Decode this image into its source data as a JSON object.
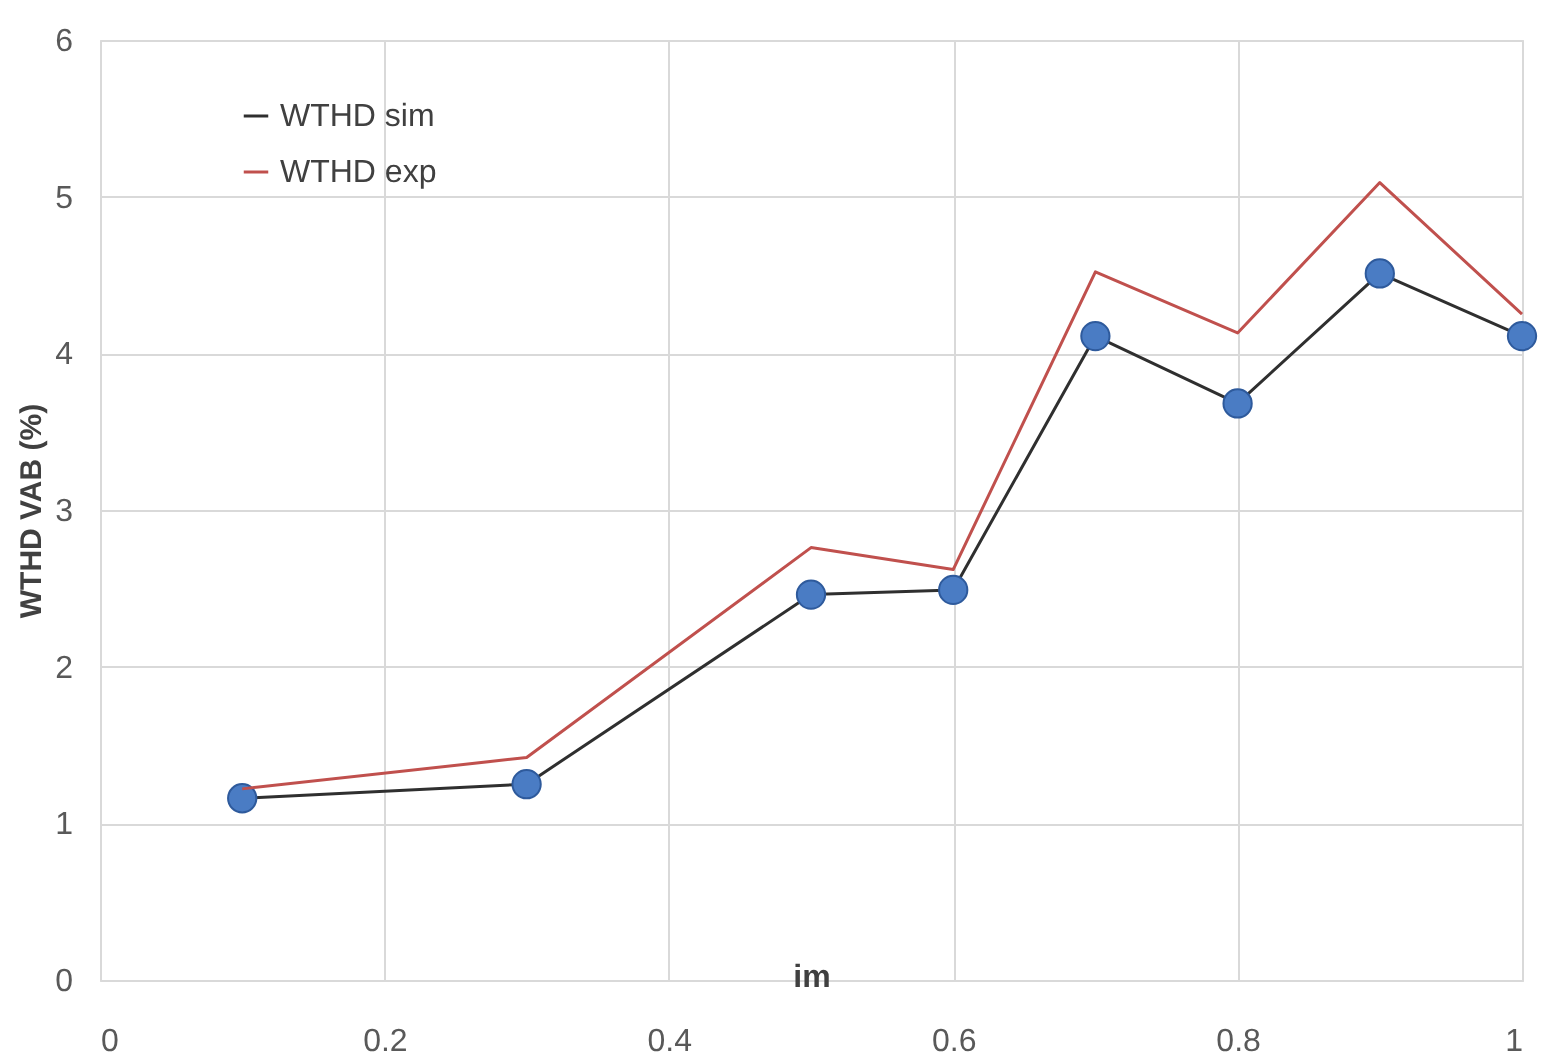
{
  "chart_data": {
    "type": "line",
    "xlabel": "im",
    "ylabel": "WTHD VAB (%)",
    "series": [
      {
        "name": "WTHD sim",
        "color": "#2f2f2f",
        "marker": "circle",
        "x": [
          0.1,
          0.3,
          0.5,
          0.6,
          0.7,
          0.8,
          0.9,
          1.0
        ],
        "values": [
          1.16,
          1.25,
          2.46,
          2.49,
          4.11,
          3.68,
          4.51,
          4.11
        ]
      },
      {
        "name": "WTHD exp",
        "color": "#c0504d",
        "marker": "none",
        "x": [
          0.1,
          0.3,
          0.5,
          0.6,
          0.7,
          0.8,
          0.9,
          1.0
        ],
        "values": [
          1.22,
          1.42,
          2.76,
          2.62,
          4.52,
          4.13,
          5.09,
          4.25
        ]
      }
    ],
    "xlim": [
      0,
      1
    ],
    "xticks": [
      0,
      0.2,
      0.4,
      0.6,
      0.8,
      1
    ],
    "ylim": [
      0,
      6
    ],
    "yticks": [
      0,
      1,
      2,
      3,
      4,
      5,
      6
    ],
    "grid": true,
    "legend": "top left",
    "line_style": "solid"
  }
}
